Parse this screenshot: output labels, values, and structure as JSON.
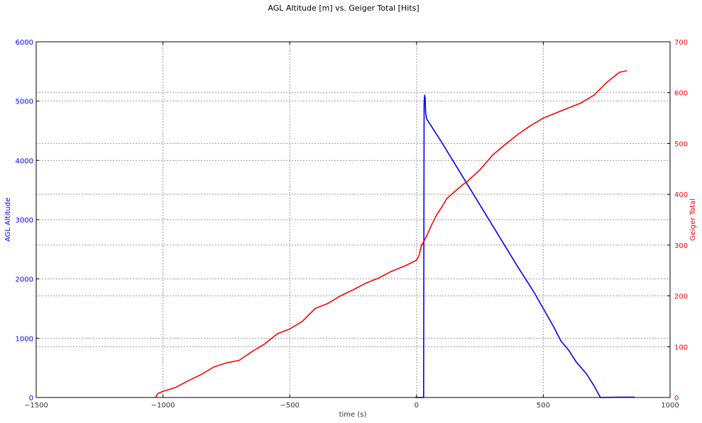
{
  "chart_data": {
    "type": "line",
    "title": "AGL Altitude [m] vs. Geiger Total [Hits]",
    "xlabel": "time (s)",
    "ylabel_left": "AGL Altitude",
    "ylabel_right": "Geiger Total",
    "xlim": [
      -1500,
      1000
    ],
    "ylim_left": [
      0,
      6000
    ],
    "ylim_right": [
      0,
      700
    ],
    "xticks": [
      -1500,
      -1000,
      -500,
      0,
      500,
      1000
    ],
    "yticks_left": [
      0,
      1000,
      2000,
      3000,
      4000,
      5000,
      6000
    ],
    "yticks_right": [
      0,
      100,
      200,
      300,
      400,
      500,
      600,
      700
    ],
    "grid": true,
    "colors": {
      "left_axis": "#0000ff",
      "right_axis": "#ff0000",
      "grid": "#9a9a9a"
    },
    "series": [
      {
        "name": "AGL Altitude",
        "axis": "left",
        "color": "#0000ff",
        "x": [
          -5,
          28,
          30,
          32,
          34,
          36,
          40,
          100,
          200,
          300,
          400,
          460,
          500,
          540,
          570,
          600,
          630,
          670,
          700,
          725,
          800,
          860
        ],
        "y": [
          0,
          0,
          4950,
          5100,
          5050,
          4800,
          4700,
          4300,
          3600,
          2900,
          2200,
          1800,
          1500,
          1200,
          950,
          800,
          600,
          400,
          200,
          0,
          5,
          5
        ]
      },
      {
        "name": "Geiger Total",
        "axis": "right",
        "color": "#ff0000",
        "x": [
          -1030,
          -1020,
          -1000,
          -950,
          -900,
          -850,
          -800,
          -750,
          -700,
          -650,
          -600,
          -550,
          -500,
          -450,
          -400,
          -350,
          -300,
          -250,
          -200,
          -150,
          -100,
          -50,
          0,
          10,
          20,
          30,
          40,
          60,
          80,
          100,
          120,
          150,
          180,
          200,
          250,
          300,
          350,
          400,
          450,
          500,
          550,
          600,
          650,
          700,
          750,
          800,
          830
        ],
        "y": [
          0,
          8,
          12,
          20,
          33,
          45,
          60,
          68,
          73,
          90,
          105,
          125,
          135,
          150,
          175,
          185,
          200,
          212,
          225,
          235,
          248,
          258,
          270,
          280,
          300,
          308,
          318,
          340,
          360,
          375,
          392,
          405,
          418,
          425,
          448,
          477,
          498,
          518,
          535,
          550,
          560,
          570,
          580,
          595,
          620,
          640,
          643
        ]
      }
    ]
  }
}
